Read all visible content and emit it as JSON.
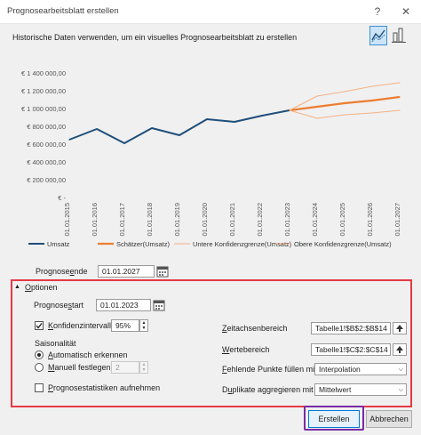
{
  "window": {
    "title": "Prognosearbeitsblatt erstellen",
    "help_label": "?",
    "close_label": "✕"
  },
  "header": {
    "description": "Historische Daten verwenden, um ein visuelles Prognosearbeitsblatt zu erstellen"
  },
  "chart_data": {
    "type": "line",
    "x": [
      "01.01.2015",
      "01.01.2016",
      "01.01.2017",
      "01.01.2018",
      "01.01.2019",
      "01.01.2020",
      "01.01.2021",
      "01.01.2022",
      "01.01.2023",
      "01.01.2024",
      "01.01.2025",
      "01.01.2026",
      "01.01.2027"
    ],
    "ylim": [
      0,
      1400000
    ],
    "yticks": [
      "€ -",
      "€ 200 000,00",
      "€ 400 000,00",
      "€ 600 000,00",
      "€ 800 000,00",
      "€ 1 000 000,00",
      "€ 1 200 000,00",
      "€ 1 400 000,00"
    ],
    "ytick_values": [
      0,
      200000,
      400000,
      600000,
      800000,
      1000000,
      1200000,
      1400000
    ],
    "series": [
      {
        "name": "Umsatz",
        "color": "#1f4e79",
        "values": [
          650000,
          770000,
          610000,
          780000,
          700000,
          880000,
          850000,
          920000,
          980000,
          null,
          null,
          null,
          null
        ]
      },
      {
        "name": "Schätzer(Umsatz)",
        "color": "#ed7d31",
        "values": [
          null,
          null,
          null,
          null,
          null,
          null,
          null,
          null,
          980000,
          1020000,
          1060000,
          1090000,
          1130000
        ]
      },
      {
        "name": "Untere Konfidenzgrenze(Umsatz)",
        "color": "#f4b183",
        "values": [
          null,
          null,
          null,
          null,
          null,
          null,
          null,
          null,
          980000,
          890000,
          930000,
          950000,
          980000
        ]
      },
      {
        "name": "Obere Konfidenzgrenze(Umsatz)",
        "color": "#f4b183",
        "values": [
          null,
          null,
          null,
          null,
          null,
          null,
          null,
          null,
          980000,
          1140000,
          1190000,
          1250000,
          1290000
        ]
      }
    ],
    "grid": true,
    "legend": "bottom"
  },
  "forecast": {
    "end_label": "Prognoseende",
    "end_value": "01.01.2027"
  },
  "options": {
    "toggle_label": "Optionen",
    "start_label": "Prognosestart",
    "start_value": "01.01.2023",
    "confidence_label": "Konfidenzintervall",
    "confidence_value": "95%",
    "seasonality_label": "Saisonalität",
    "auto_label": "Automatisch erkennen",
    "manual_label": "Manuell festlegen",
    "manual_value": "2",
    "stats_label": "Prognosestatistiken aufnehmen",
    "timeline_label": "Zeitachsenbereich",
    "timeline_value": "Tabelle1!$B$2:$B$14",
    "values_label": "Wertebereich",
    "values_value": "Tabelle1!$C$2:$C$14",
    "missing_label": "Fehlende Punkte füllen mit",
    "missing_value": "Interpolation",
    "duplicates_label": "Duplikate aggregieren mit",
    "duplicates_value": "Mittelwert"
  },
  "buttons": {
    "create": "Erstellen",
    "cancel": "Abbrechen"
  }
}
